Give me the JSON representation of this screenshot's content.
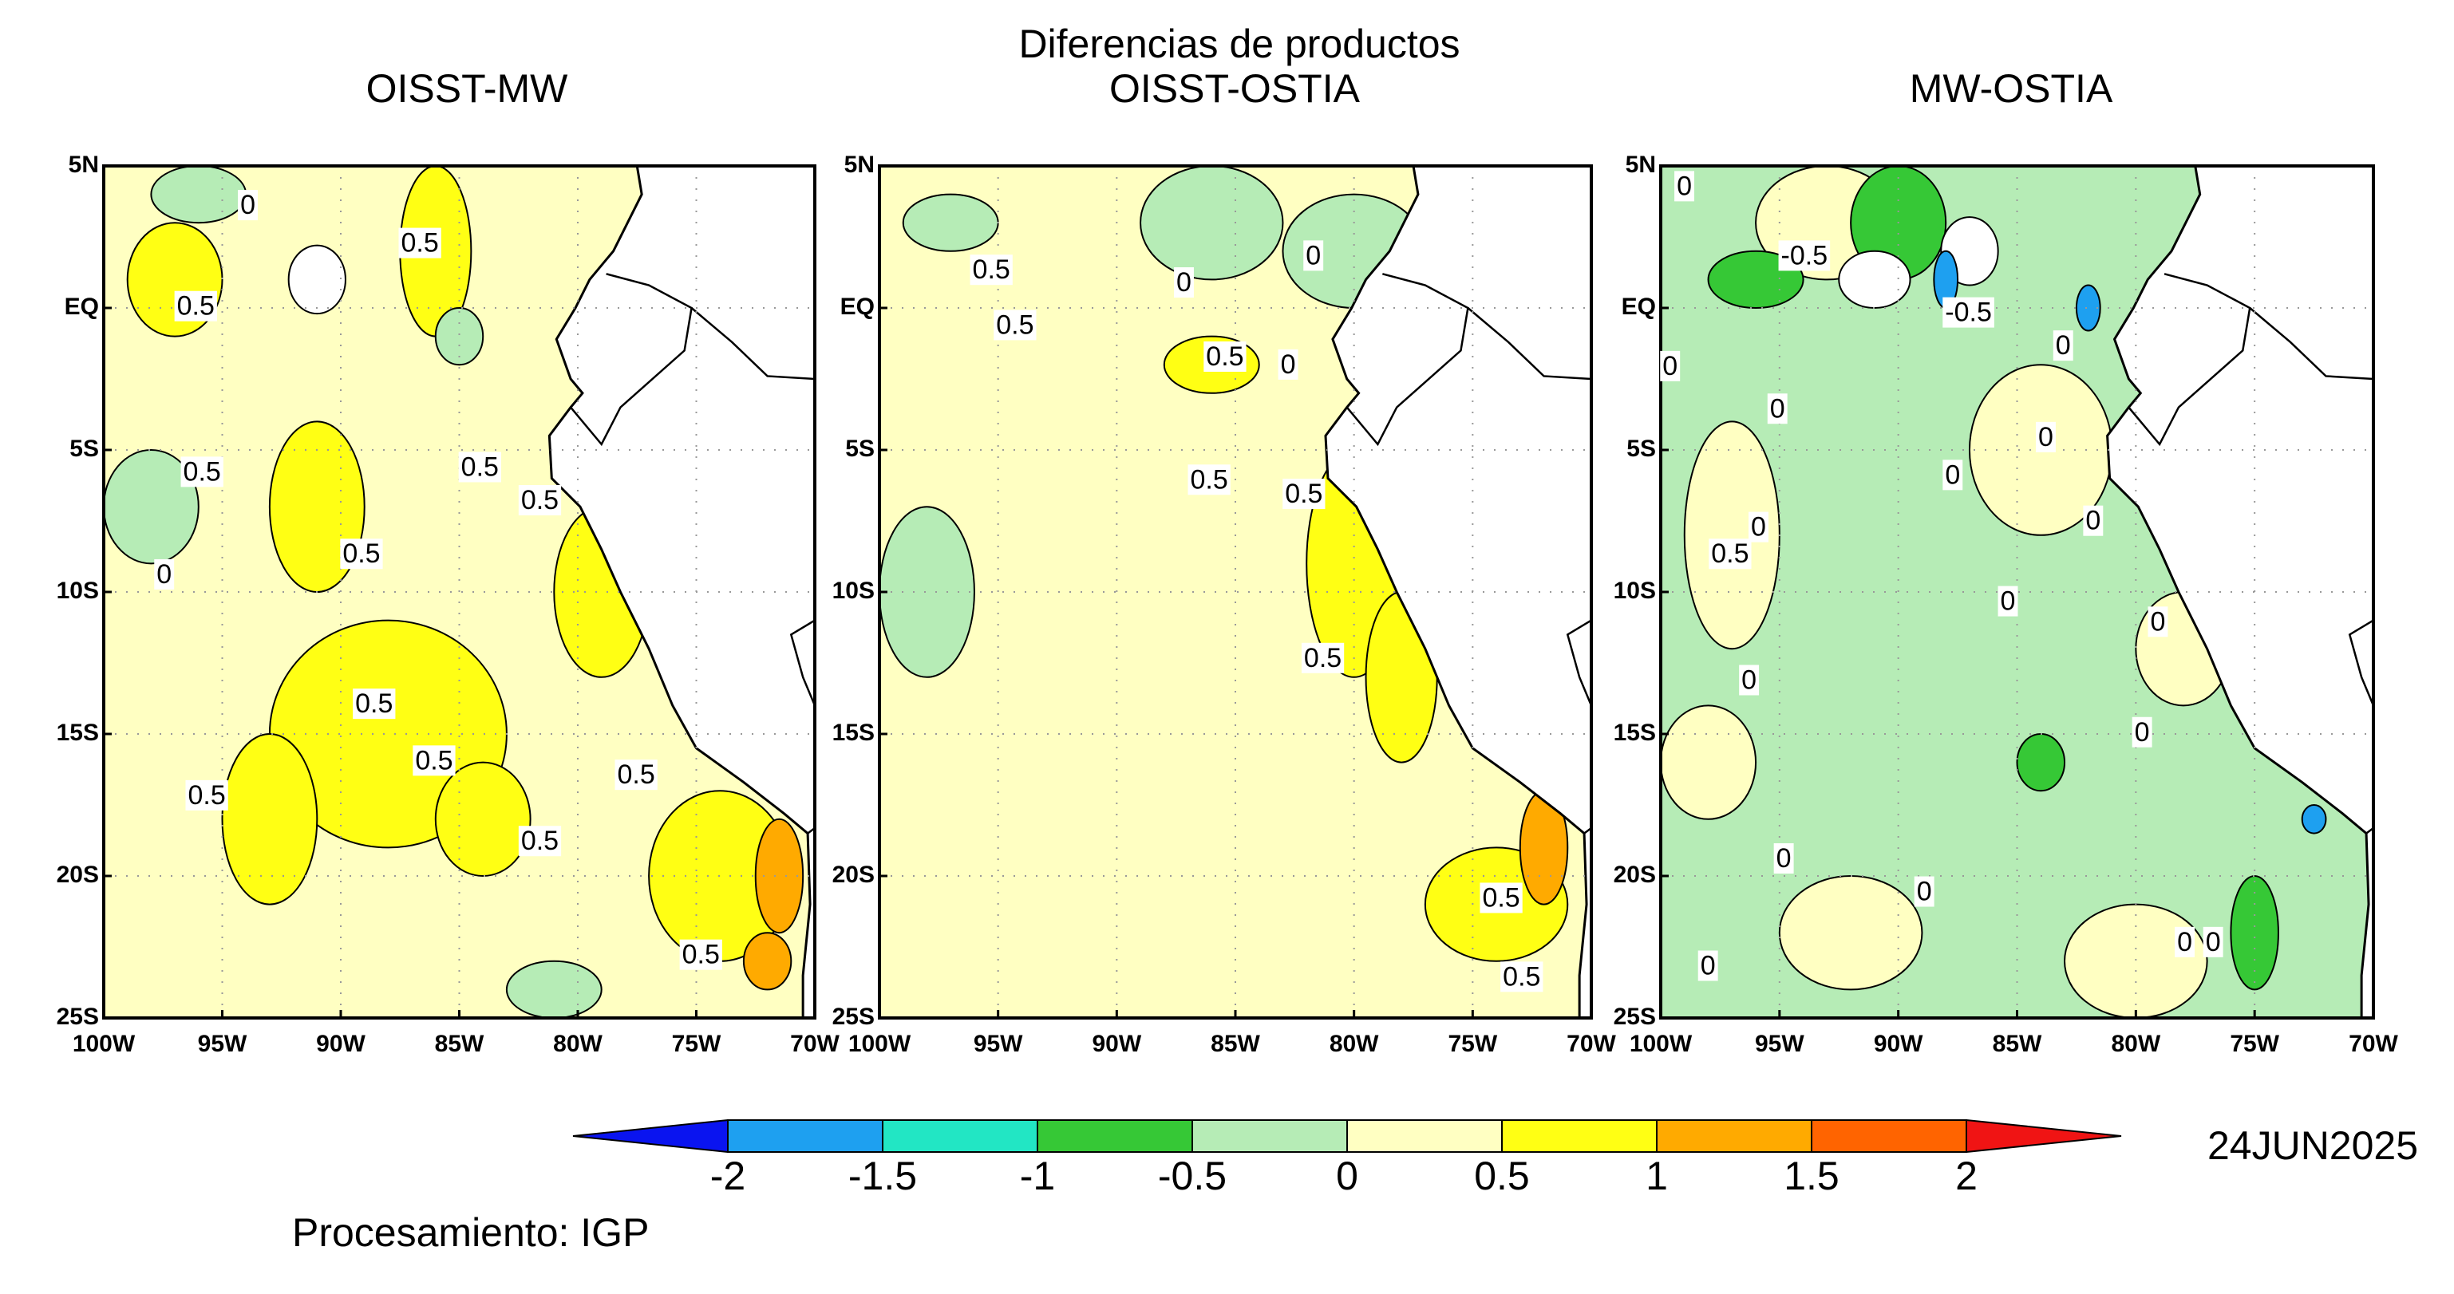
{
  "title": "Diferencias de productos",
  "panels": [
    {
      "title": "OISST-MW",
      "contour_labels": [
        "0",
        "0.5",
        "0.5",
        "0.5",
        "0.5",
        "0.5",
        "0.5",
        "0",
        "0.5",
        "0.5",
        "0.5",
        "0.5",
        "0.5",
        "0.5"
      ]
    },
    {
      "title": "OISST-OSTIA",
      "contour_labels": [
        "0.5",
        "0.5",
        "0",
        "0",
        "0.5",
        "0",
        "0.5",
        "0.5",
        "0.5",
        "0.5",
        "0.5"
      ]
    },
    {
      "title": "MW-OSTIA",
      "contour_labels": [
        "0",
        "-0.5",
        "-0.5",
        "0",
        "0",
        "0",
        "0",
        "0",
        "0",
        "0",
        "0.5",
        "0",
        "0",
        "0",
        "0",
        "0",
        "0",
        "0",
        "0",
        "0"
      ]
    }
  ],
  "lat_ticks": [
    "5N",
    "EQ",
    "5S",
    "10S",
    "15S",
    "20S",
    "25S"
  ],
  "lon_ticks": [
    "100W",
    "95W",
    "90W",
    "85W",
    "80W",
    "75W",
    "70W"
  ],
  "colorbar": {
    "levels": [
      -2,
      -1.5,
      -1,
      -0.5,
      0,
      0.5,
      1,
      1.5,
      2
    ],
    "colors": [
      "#0a14f0",
      "#1ea0f0",
      "#22e6c4",
      "#36c836",
      "#b6ecb6",
      "#ffffc2",
      "#ffff14",
      "#ffaa00",
      "#ff6400",
      "#f01414"
    ]
  },
  "date": "24JUN2025",
  "credit": "Procesamiento: IGP"
}
